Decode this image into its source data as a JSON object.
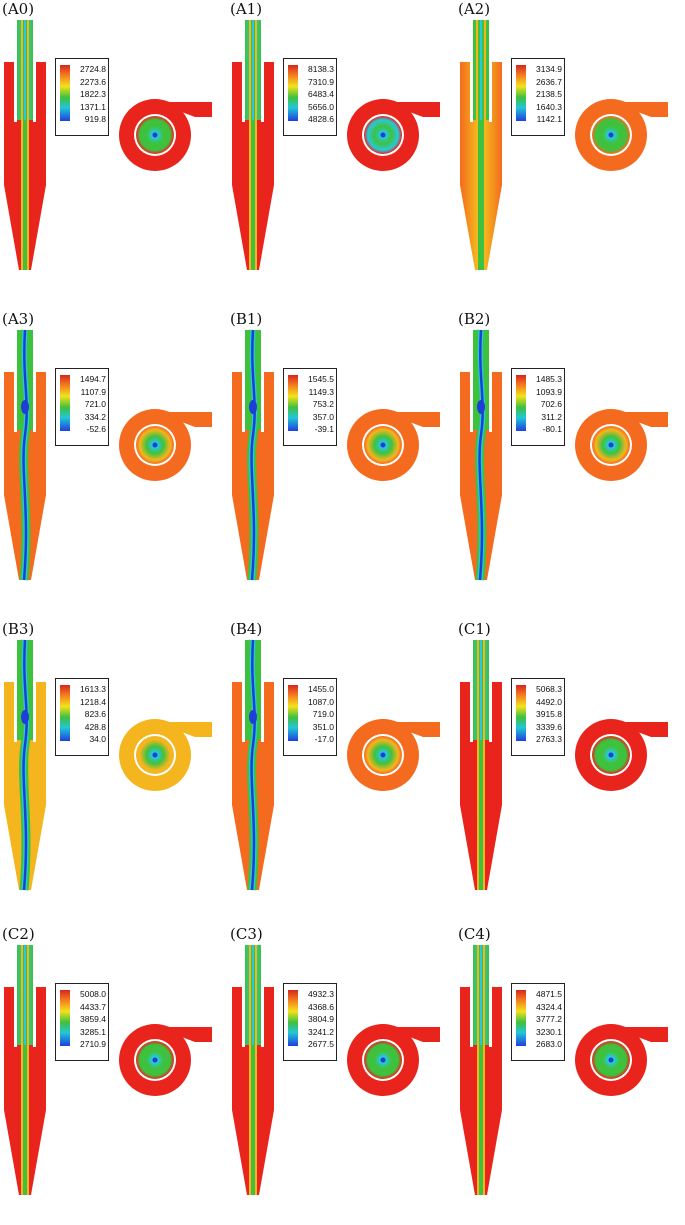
{
  "panels": [
    {
      "id": "A0",
      "label": "(A0)",
      "legend": [
        "2724.8",
        "2273.6",
        "1822.3",
        "1371.1",
        "919.8"
      ],
      "style": "red-narrow-core"
    },
    {
      "id": "A1",
      "label": "(A1)",
      "legend": [
        "8138.3",
        "7310.9",
        "6483.4",
        "5656.0",
        "4828.6"
      ],
      "style": "red-cyan-tube"
    },
    {
      "id": "A2",
      "label": "(A2)",
      "legend": [
        "3134.9",
        "2636.7",
        "2138.5",
        "1640.3",
        "1142.1"
      ],
      "style": "orange-wide"
    },
    {
      "id": "A3",
      "label": "(A3)",
      "legend": [
        "1494.7",
        "1107.9",
        "721.0",
        "334.2",
        "-52.6"
      ],
      "style": "orange-vortex"
    },
    {
      "id": "B1",
      "label": "(B1)",
      "legend": [
        "1545.5",
        "1149.3",
        "753.2",
        "357.0",
        "-39.1"
      ],
      "style": "orange-vortex"
    },
    {
      "id": "B2",
      "label": "(B2)",
      "legend": [
        "1485.3",
        "1093.9",
        "702.6",
        "311.2",
        "-80.1"
      ],
      "style": "orange-vortex"
    },
    {
      "id": "B3",
      "label": "(B3)",
      "legend": [
        "1613.3",
        "1218.4",
        "823.6",
        "428.8",
        "34.0"
      ],
      "style": "yellow-vortex"
    },
    {
      "id": "B4",
      "label": "(B4)",
      "legend": [
        "1455.0",
        "1087.0",
        "719.0",
        "351.0",
        "-17.0"
      ],
      "style": "orange-vortex"
    },
    {
      "id": "C1",
      "label": "(C1)",
      "legend": [
        "5068.3",
        "4492.0",
        "3915.8",
        "3339.6",
        "2763.3"
      ],
      "style": "red-narrow-core"
    },
    {
      "id": "C2",
      "label": "(C2)",
      "legend": [
        "5008.0",
        "4433.7",
        "3859.4",
        "3285.1",
        "2710.9"
      ],
      "style": "red-narrow-core"
    },
    {
      "id": "C3",
      "label": "(C3)",
      "legend": [
        "4932.3",
        "4368.6",
        "3804.9",
        "3241.2",
        "2677.5"
      ],
      "style": "red-narrow-core"
    },
    {
      "id": "C4",
      "label": "(C4)",
      "legend": [
        "4871.5",
        "4324.4",
        "3777.2",
        "3230.1",
        "2683.0"
      ],
      "style": "red-narrow-core"
    }
  ],
  "colors": {
    "red": "#e8241c",
    "orange": "#f46a1e",
    "yellow": "#f4b51e",
    "green": "#3ec23e",
    "cyan": "#27c9dc",
    "blue": "#1c3fd8"
  }
}
